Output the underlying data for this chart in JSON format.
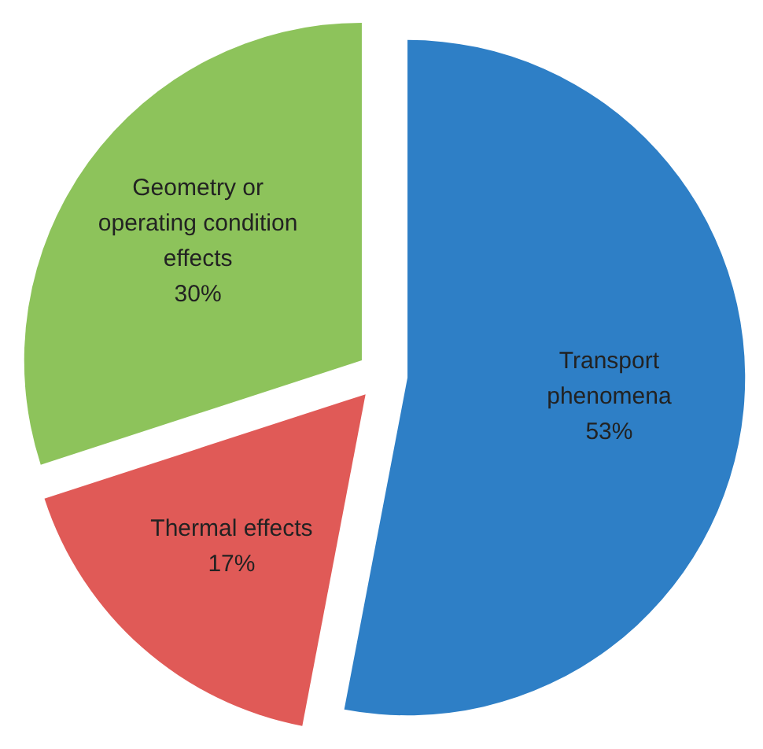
{
  "chart_data": {
    "type": "pie",
    "categories": [
      "Transport phenomena",
      "Thermal effects",
      "Geometry or operating condition effects"
    ],
    "values": [
      53,
      17,
      30
    ],
    "colors": [
      "#2e7fc6",
      "#e05a57",
      "#8dc35b"
    ],
    "value_labels": [
      "53%",
      "17%",
      "30%"
    ],
    "data_labels": true
  }
}
